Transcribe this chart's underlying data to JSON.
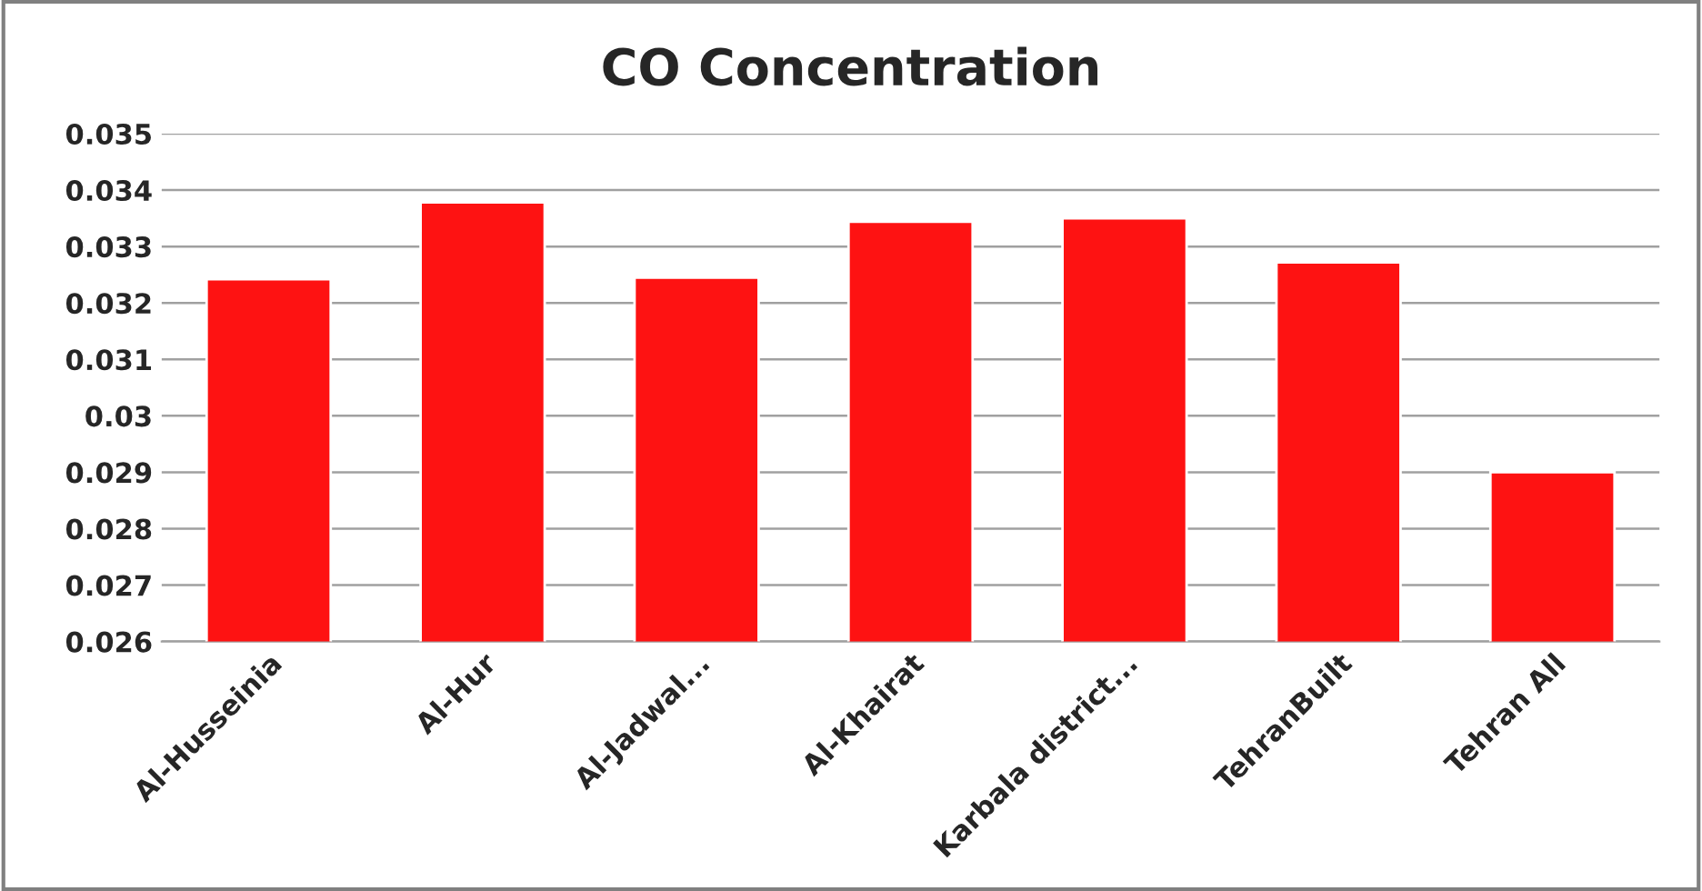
{
  "chart_data": {
    "type": "bar",
    "title": "CO Concentration",
    "categories": [
      "Al-Husseinia",
      "Al-Hur",
      "Al-Jadwal...",
      "Al-Khairat",
      "Karbala district...",
      "TehranBuilt",
      "Tehran All"
    ],
    "values": [
      0.03242,
      0.03378,
      0.03245,
      0.03344,
      0.0335,
      0.03272,
      0.029
    ],
    "color": "#fe1212",
    "ylim": [
      0.026,
      0.035
    ],
    "yticks": [
      {
        "value": 0.026,
        "label": "0.026"
      },
      {
        "value": 0.027,
        "label": "0.027"
      },
      {
        "value": 0.028,
        "label": "0.028"
      },
      {
        "value": 0.029,
        "label": "0.029"
      },
      {
        "value": 0.03,
        "label": "0.03"
      },
      {
        "value": 0.031,
        "label": "0.031"
      },
      {
        "value": 0.032,
        "label": "0.032"
      },
      {
        "value": 0.033,
        "label": "0.033"
      },
      {
        "value": 0.034,
        "label": "0.034"
      },
      {
        "value": 0.035,
        "label": "0.035"
      }
    ],
    "grid": "y"
  }
}
